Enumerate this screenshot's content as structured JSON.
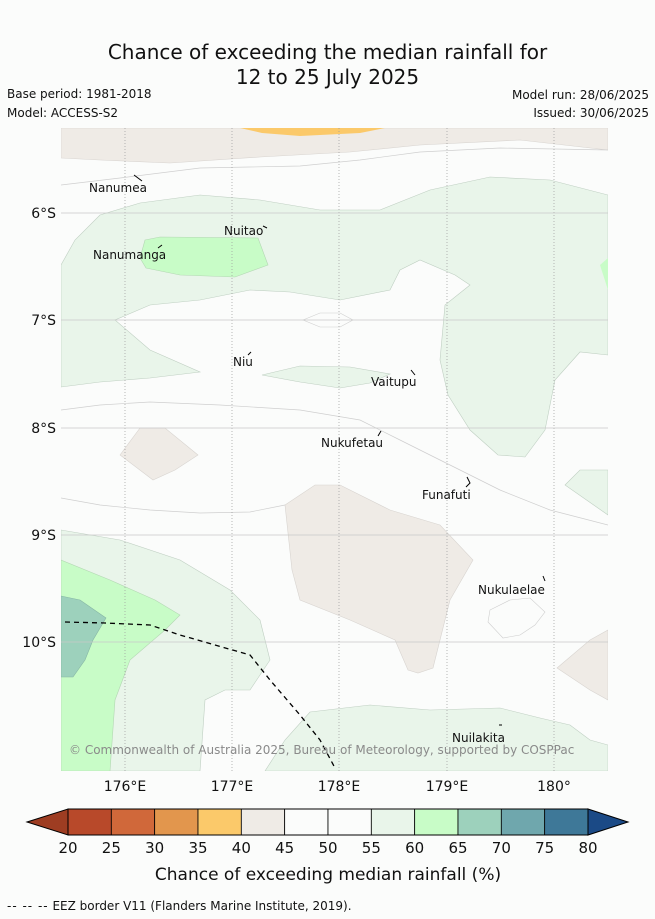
{
  "title_line1": "Chance of exceeding the median rainfall for",
  "title_line2": "12 to 25 July 2025",
  "base_period": "Base period: 1981-2018",
  "model": "Model: ACCESS-S2",
  "model_run": "Model run: 28/06/2025",
  "issued": "Issued: 30/06/2025",
  "lat_labels": [
    "6°S",
    "7°S",
    "8°S",
    "9°S",
    "10°S"
  ],
  "lon_labels": [
    "176°E",
    "177°E",
    "178°E",
    "179°E",
    "180°"
  ],
  "islands": [
    "Nanumea",
    "Nuitao",
    "Nanumanga",
    "Niu",
    "Vaitupu",
    "Nukufetau",
    "Funafuti",
    "Nukulaelae",
    "Nuilakita"
  ],
  "copyright": "© Commonwealth of Australia 2025, Bureau of Meteorology, supported by COSPPac",
  "colorbar": {
    "ticks": [
      "20",
      "25",
      "30",
      "35",
      "40",
      "45",
      "50",
      "55",
      "60",
      "65",
      "70",
      "75",
      "80"
    ],
    "colors": [
      "#9e3d22",
      "#b8492a",
      "#d0683a",
      "#e2964d",
      "#fbc96a",
      "#efebe6",
      "#fbfcfb",
      "#fbfcfb",
      "#e9f5ea",
      "#c8fcc7",
      "#9dd1bc",
      "#6fa7ad",
      "#3e7898",
      "#1b4a86"
    ],
    "label": "Chance of exceeding median rainfall (%)"
  },
  "legend": {
    "dash": "-- -- --",
    "text": "EEZ border V11 (Flanders Marine Institute, 2019)."
  }
}
